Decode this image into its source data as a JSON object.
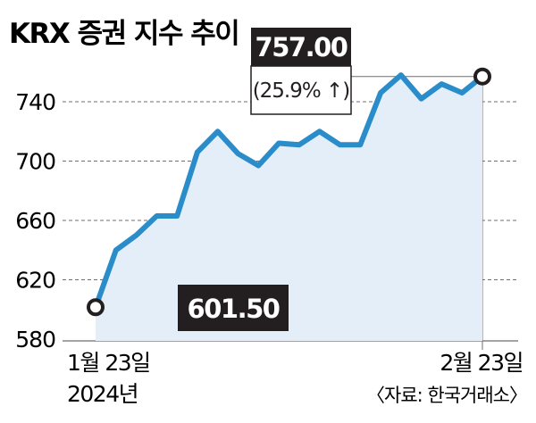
{
  "chart_data": {
    "type": "area",
    "title": "KRX 증권 지수 추이",
    "xlabel": "",
    "ylabel": "",
    "ylim": [
      580,
      760
    ],
    "y_ticks": [
      580,
      620,
      660,
      700,
      740
    ],
    "grid": true,
    "x_labels": {
      "start_date": "1월 23일",
      "start_year": "2024년",
      "end_date": "2월 23일"
    },
    "series": [
      {
        "values": [
          601.5,
          640,
          650,
          663,
          663,
          706,
          720,
          705,
          697,
          712,
          711,
          720,
          711,
          711,
          746,
          758,
          742,
          752,
          746,
          757
        ]
      }
    ],
    "annotations": {
      "start_value": "601.50",
      "end_value": "757.00",
      "end_change": "(25.9% ↑)"
    },
    "source": "〈자료: 한국거래소〉",
    "colors": {
      "line": "#2b8cca",
      "fill": "#e3eef8",
      "label_box": "#231f20",
      "label_text": "#ffffff"
    }
  }
}
